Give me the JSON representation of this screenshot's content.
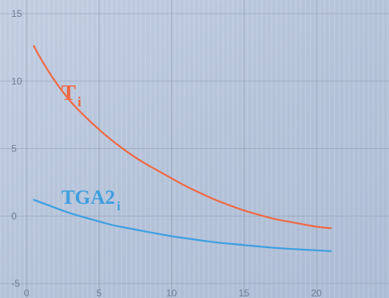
{
  "chart_data": {
    "type": "line",
    "title": "",
    "xlabel": "",
    "ylabel": "",
    "xlim": [
      0,
      21
    ],
    "ylim": [
      -5,
      15
    ],
    "grid": true,
    "legend": "none",
    "x_ticks": [
      0,
      5,
      10,
      15,
      20
    ],
    "y_ticks": [
      -5,
      0,
      5,
      10,
      15
    ],
    "series": [
      {
        "name": "T",
        "subscript": "i",
        "color": "#ee6a45",
        "x": [
          0.5,
          1,
          2,
          3,
          4,
          5,
          6,
          7,
          8,
          9,
          10,
          11,
          12,
          13,
          14,
          15,
          16,
          17,
          18,
          19,
          20,
          21
        ],
        "y": [
          12.6,
          11.6,
          9.9,
          8.5,
          7.4,
          6.4,
          5.5,
          4.7,
          4.0,
          3.4,
          2.8,
          2.2,
          1.7,
          1.2,
          0.8,
          0.4,
          0.1,
          -0.2,
          -0.4,
          -0.6,
          -0.8,
          -0.9
        ]
      },
      {
        "name": "TGA2",
        "subscript": "i",
        "color": "#3d9fe0",
        "x": [
          0.5,
          1,
          2,
          3,
          4,
          5,
          6,
          7,
          8,
          9,
          10,
          11,
          12,
          13,
          14,
          15,
          16,
          17,
          18,
          19,
          20,
          21
        ],
        "y": [
          1.2,
          1.0,
          0.6,
          0.2,
          -0.1,
          -0.4,
          -0.7,
          -0.9,
          -1.1,
          -1.3,
          -1.5,
          -1.65,
          -1.8,
          -1.95,
          -2.05,
          -2.15,
          -2.25,
          -2.35,
          -2.42,
          -2.48,
          -2.54,
          -2.6
        ]
      }
    ]
  }
}
